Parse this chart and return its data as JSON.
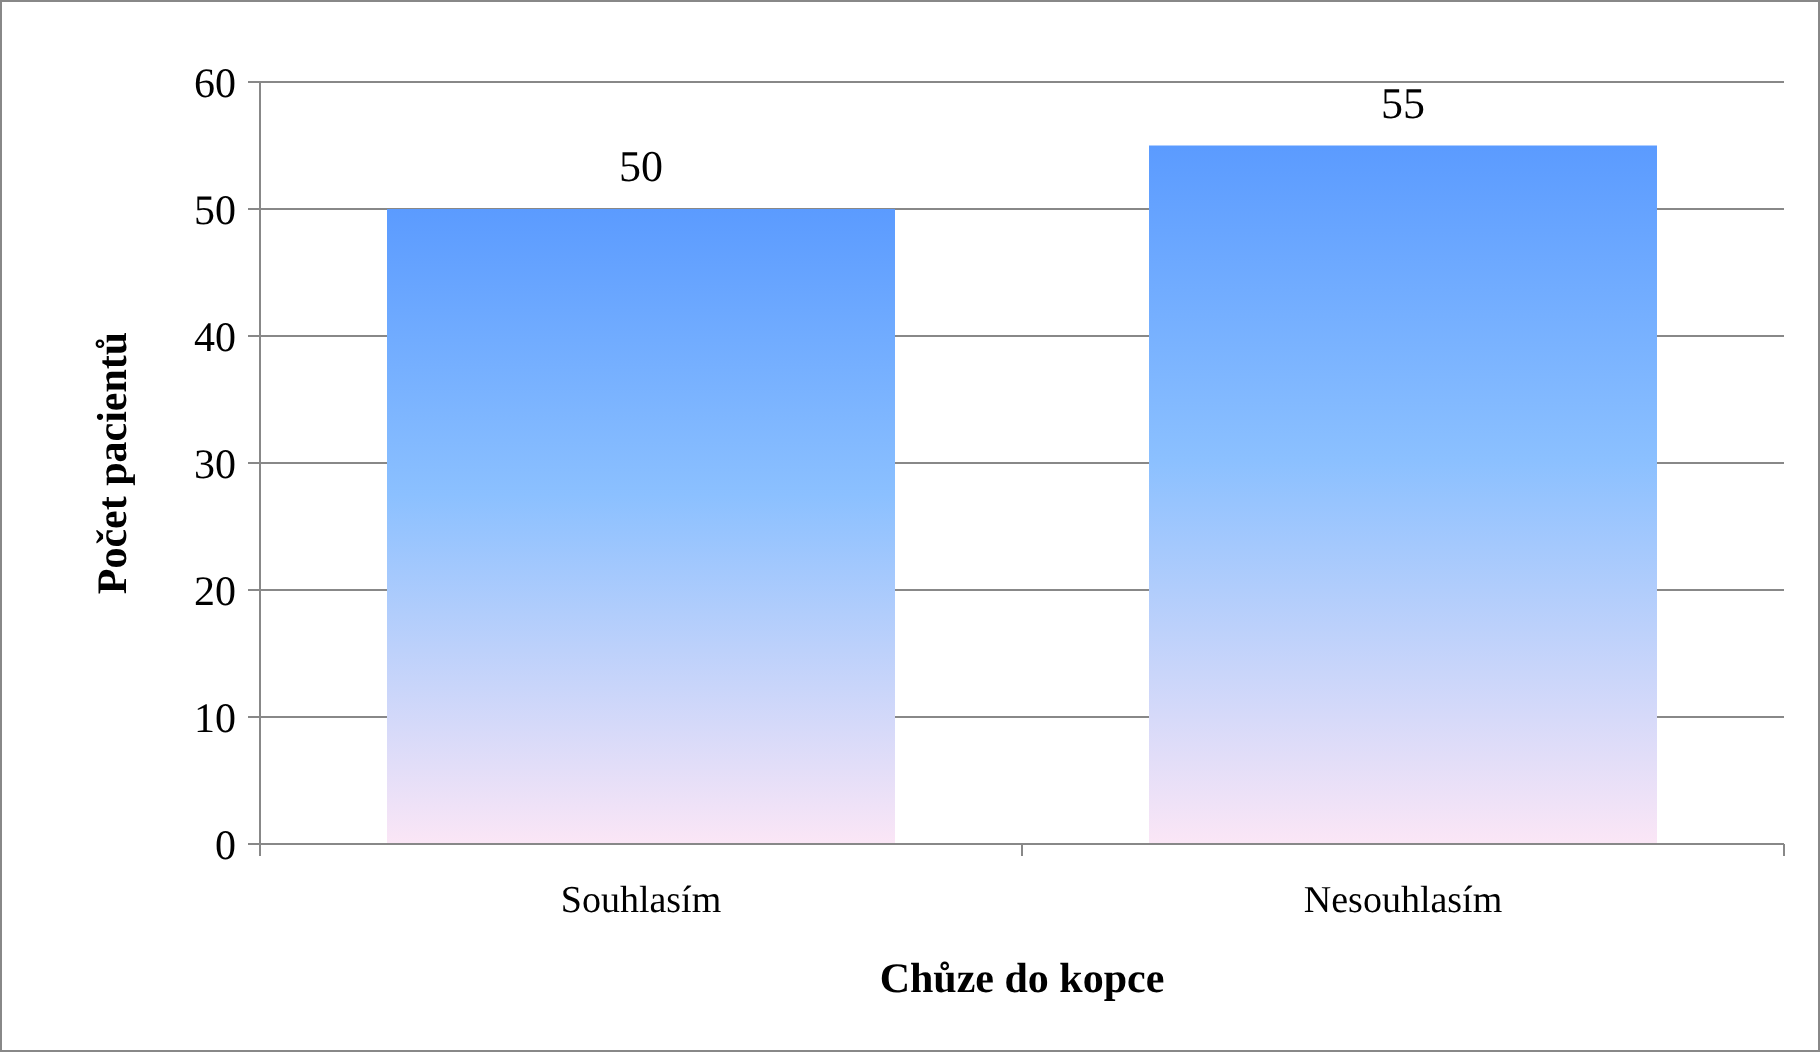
{
  "chart_data": {
    "type": "bar",
    "xlabel": "Chůze do kopce",
    "ylabel": "Počet pacientů",
    "categories": [
      "Souhlasím",
      "Nesouhlasím"
    ],
    "values": [
      50,
      55
    ],
    "color": "#5b9bff",
    "data_labels": true,
    "ylim": [
      0,
      60
    ],
    "yticks": [
      0,
      10,
      20,
      30,
      40,
      50,
      60
    ],
    "grid": "y"
  }
}
